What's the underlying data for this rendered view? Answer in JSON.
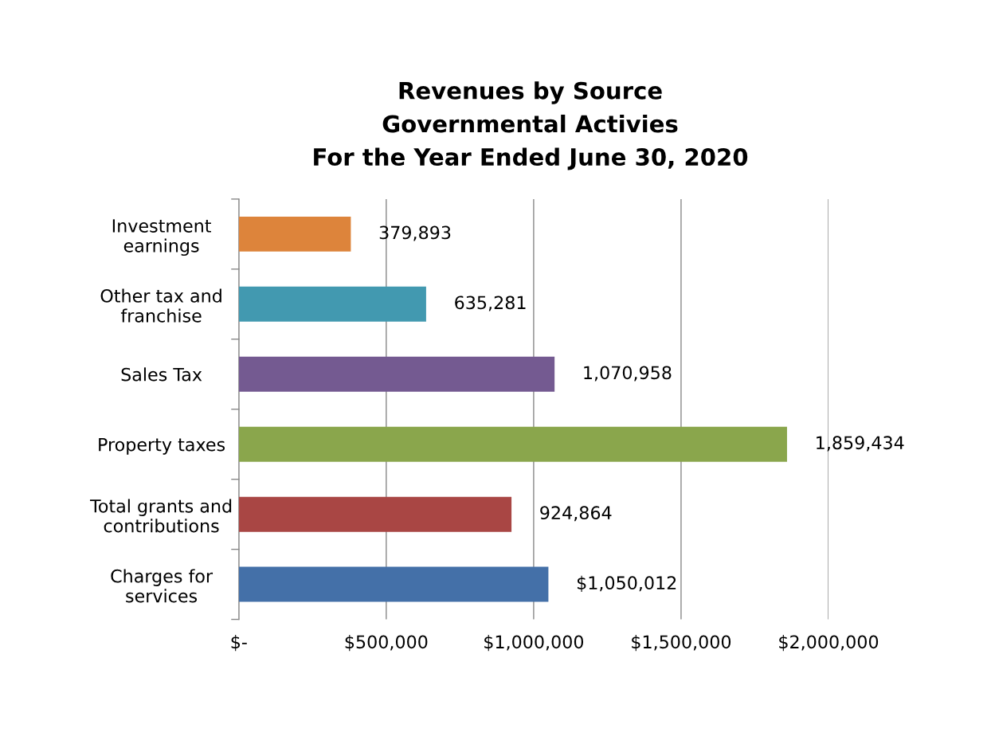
{
  "chart_data": {
    "type": "bar",
    "orientation": "horizontal",
    "title": "Revenues by Source\nGovernmental Activies\nFor the Year Ended June 30, 2020",
    "categories": [
      "Investment\nearnings",
      "Other tax and\nfranchise",
      "Sales Tax",
      "Property taxes",
      "Total grants and\ncontributions",
      "Charges for\nservices"
    ],
    "values": [
      379893,
      635281,
      1070958,
      1859434,
      924864,
      1050012
    ],
    "colors": [
      "#dd843b",
      "#4299b0",
      "#745a91",
      "#8aa64c",
      "#a94644",
      "#4470a8"
    ],
    "value_labels": [
      "379,893",
      "635,281",
      "1,070,958",
      "1,859,434",
      "924,864",
      "$1,050,012"
    ],
    "xlim": [
      0,
      2000000
    ],
    "xticks": [
      {
        "value": 0,
        "label": "$-"
      },
      {
        "value": 500000,
        "label": "$500,000"
      },
      {
        "value": 1000000,
        "label": "$1,000,000"
      },
      {
        "value": 1500000,
        "label": "$1,500,000"
      },
      {
        "value": 2000000,
        "label": "$2,000,000"
      }
    ],
    "grid": "x",
    "legend": false
  }
}
